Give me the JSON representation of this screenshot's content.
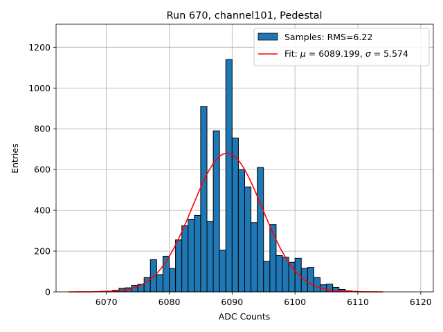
{
  "chart_data": {
    "type": "bar",
    "title": "Run 670, channel101, Pedestal",
    "xlabel": "ADC Counts",
    "ylabel": "Entries",
    "xlim": [
      6062,
      6122
    ],
    "ylim": [
      0,
      1313
    ],
    "xticks": [
      6070,
      6080,
      6090,
      6100,
      6110,
      6120
    ],
    "yticks": [
      0,
      200,
      400,
      600,
      800,
      1000,
      1200
    ],
    "grid": true,
    "legend_position": "top-right",
    "bin_width": 1,
    "histogram": {
      "name": "Samples: RMS=6.22",
      "color": "#1f77b4",
      "edgecolor": "#000000",
      "bin_starts": [
        6064,
        6065,
        6066,
        6067,
        6068,
        6069,
        6070,
        6071,
        6072,
        6073,
        6074,
        6075,
        6076,
        6077,
        6078,
        6079,
        6080,
        6081,
        6082,
        6083,
        6084,
        6085,
        6086,
        6087,
        6088,
        6089,
        6090,
        6091,
        6092,
        6093,
        6094,
        6095,
        6096,
        6097,
        6098,
        6099,
        6100,
        6101,
        6102,
        6103,
        6104,
        6105,
        6106,
        6107,
        6108,
        6109,
        6110,
        6111,
        6112,
        6113
      ],
      "counts": [
        0,
        0,
        0,
        0,
        0,
        3,
        4,
        8,
        18,
        20,
        32,
        37,
        70,
        158,
        85,
        175,
        115,
        255,
        325,
        355,
        375,
        910,
        345,
        790,
        205,
        1140,
        755,
        600,
        515,
        340,
        610,
        150,
        330,
        178,
        170,
        145,
        165,
        115,
        120,
        70,
        35,
        38,
        22,
        12,
        5,
        3,
        1,
        0,
        0,
        0
      ]
    },
    "fit": {
      "name": "Fit: $\\mu$ = 6089.199, $\\sigma$ = 5.574",
      "color": "#ff0000",
      "mu": 6089.199,
      "sigma": 5.574,
      "amplitude": 680,
      "x_range": [
        6064,
        6114
      ]
    }
  }
}
